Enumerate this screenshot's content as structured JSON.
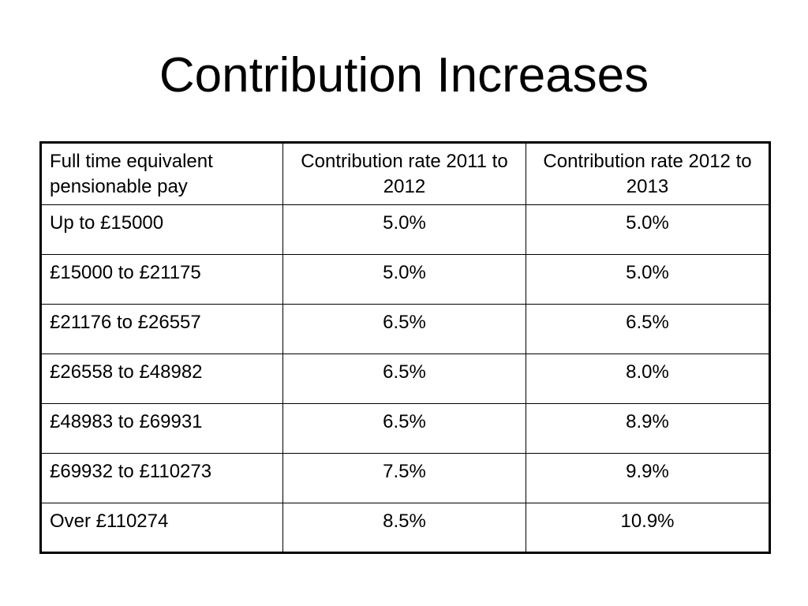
{
  "slide": {
    "title": "Contribution Increases"
  },
  "table": {
    "headers": [
      "Full time equivalent pensionable pay",
      "Contribution rate 2011 to 2012",
      "Contribution rate 2012 to 2013"
    ],
    "rows": [
      [
        "Up to £15000",
        "5.0%",
        "5.0%"
      ],
      [
        "£15000 to £21175",
        "5.0%",
        "5.0%"
      ],
      [
        "£21176 to £26557",
        "6.5%",
        "6.5%"
      ],
      [
        "£26558 to £48982",
        "6.5%",
        "8.0%"
      ],
      [
        "£48983 to £69931",
        "6.5%",
        "8.9%"
      ],
      [
        "£69932 to £110273",
        "7.5%",
        "9.9%"
      ],
      [
        "Over £110274",
        "8.5%",
        "10.9%"
      ]
    ]
  }
}
